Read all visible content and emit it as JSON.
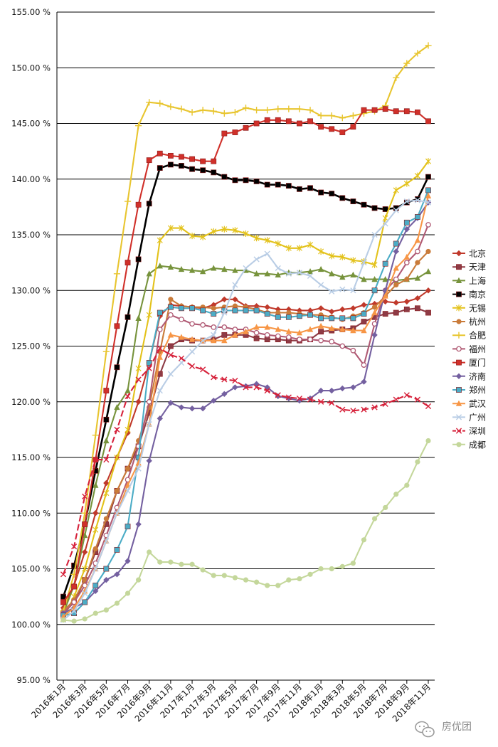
{
  "chart_data": {
    "type": "line",
    "ylim": [
      95,
      155
    ],
    "yticks": [
      "95.00 %",
      "100.00 %",
      "105.00 %",
      "110.00 %",
      "115.00 %",
      "120.00 %",
      "125.00 %",
      "130.00 %",
      "135.00 %",
      "140.00 %",
      "145.00 %",
      "150.00 %",
      "155.00 %"
    ],
    "ytick_values": [
      95,
      100,
      105,
      110,
      115,
      120,
      125,
      130,
      135,
      140,
      145,
      150,
      155
    ],
    "x": [
      "2016年1月",
      "2016年2月",
      "2016年3月",
      "2016年4月",
      "2016年5月",
      "2016年6月",
      "2016年7月",
      "2016年8月",
      "2016年9月",
      "2016年10月",
      "2016年11月",
      "2016年12月",
      "2017年1月",
      "2017年2月",
      "2017年3月",
      "2017年4月",
      "2017年5月",
      "2017年6月",
      "2017年7月",
      "2017年8月",
      "2017年9月",
      "2017年10月",
      "2017年11月",
      "2017年12月",
      "2018年1月",
      "2018年2月",
      "2018年3月",
      "2018年4月",
      "2018年5月",
      "2018年6月",
      "2018年7月",
      "2018年8月",
      "2018年9月",
      "2018年10月",
      "2018年11月"
    ],
    "xtick_labels": [
      "2016年1月",
      "2016年3月",
      "2016年5月",
      "2016年7月",
      "2016年9月",
      "2016年11月",
      "2017年1月",
      "2017年3月",
      "2017年5月",
      "2017年7月",
      "2017年9月",
      "2017年11月",
      "2018年1月",
      "2018年3月",
      "2018年5月",
      "2018年7月",
      "2018年9月",
      "2018年11月"
    ],
    "grid": true,
    "legend_position": "right",
    "watermark": "房优团",
    "series": [
      {
        "name": "北京",
        "color": "#C0392B",
        "marker": "diamond",
        "values": [
          101.5,
          103.5,
          106.5,
          110.0,
          112.7,
          115.0,
          117.2,
          120.0,
          123.5,
          127.7,
          128.7,
          128.6,
          128.5,
          128.4,
          128.7,
          129.2,
          129.2,
          128.6,
          128.6,
          128.5,
          128.3,
          128.3,
          128.2,
          128.2,
          128.4,
          128.1,
          128.3,
          128.4,
          128.7,
          128.8,
          129.0,
          128.9,
          129.0,
          129.3,
          130.0
        ]
      },
      {
        "name": "天津",
        "color": "#8E3B46",
        "marker": "square",
        "values": [
          101.0,
          102.0,
          104.0,
          106.5,
          109.0,
          112.0,
          114.0,
          116.0,
          119.0,
          122.5,
          125.0,
          125.6,
          125.5,
          125.5,
          125.6,
          126.0,
          126.0,
          126.0,
          125.7,
          125.6,
          125.6,
          125.5,
          125.5,
          125.6,
          126.3,
          126.4,
          126.5,
          126.6,
          127.2,
          127.6,
          127.9,
          128.0,
          128.3,
          128.4,
          128.0
        ]
      },
      {
        "name": "上海",
        "color": "#77933C",
        "marker": "triangle",
        "values": [
          101.0,
          103.5,
          108.0,
          112.5,
          116.5,
          119.5,
          121.0,
          127.5,
          131.5,
          132.2,
          132.1,
          131.9,
          131.8,
          131.7,
          132.0,
          131.9,
          131.8,
          131.8,
          131.5,
          131.5,
          131.4,
          131.6,
          131.6,
          131.7,
          131.9,
          131.5,
          131.2,
          131.4,
          131.0,
          131.0,
          131.0,
          130.9,
          131.0,
          131.1,
          131.7
        ]
      },
      {
        "name": "南京",
        "color": "#000000",
        "marker": "square",
        "values": [
          102.5,
          105.3,
          109.0,
          113.8,
          118.4,
          123.1,
          127.6,
          132.8,
          137.8,
          141.0,
          141.3,
          141.2,
          140.9,
          140.8,
          140.6,
          140.2,
          139.9,
          139.9,
          139.8,
          139.5,
          139.5,
          139.4,
          139.1,
          139.2,
          138.8,
          138.7,
          138.3,
          138.0,
          137.7,
          137.4,
          137.3,
          137.4,
          137.9,
          138.2,
          140.2
        ]
      },
      {
        "name": "无锡",
        "color": "#E3C21B",
        "marker": "star",
        "values": [
          100.5,
          102.5,
          105.0,
          108.5,
          111.8,
          115.0,
          117.5,
          123.0,
          127.8,
          134.5,
          135.6,
          135.6,
          134.9,
          134.8,
          135.3,
          135.5,
          135.4,
          135.1,
          134.7,
          134.5,
          134.2,
          133.8,
          133.8,
          134.1,
          133.5,
          133.1,
          133.0,
          132.7,
          132.6,
          132.3,
          136.5,
          139.0,
          139.6,
          140.3,
          141.6
        ]
      },
      {
        "name": "杭州",
        "color": "#C97B3A",
        "marker": "circle",
        "values": [
          101.2,
          102.2,
          104.0,
          106.8,
          109.5,
          112.0,
          114.0,
          116.5,
          119.5,
          124.5,
          129.2,
          128.6,
          128.5,
          128.5,
          128.4,
          128.5,
          128.6,
          128.5,
          128.3,
          128.0,
          128.0,
          128.0,
          127.9,
          127.8,
          127.8,
          127.6,
          127.4,
          127.7,
          128.0,
          128.5,
          129.5,
          130.5,
          131.0,
          132.5,
          133.5
        ]
      },
      {
        "name": "合肥",
        "color": "#E8C52F",
        "marker": "plus",
        "values": [
          101.2,
          104.5,
          110.0,
          117.0,
          124.5,
          131.5,
          138.0,
          144.8,
          146.9,
          146.8,
          146.5,
          146.3,
          146.0,
          146.2,
          146.1,
          145.9,
          146.0,
          146.4,
          146.2,
          146.2,
          146.3,
          146.3,
          146.3,
          146.2,
          145.7,
          145.7,
          145.5,
          145.7,
          145.9,
          146.1,
          146.6,
          149.1,
          150.4,
          151.3,
          152.0
        ]
      },
      {
        "name": "福州",
        "color": "#B05A74",
        "marker": "circle-open",
        "values": [
          101.0,
          102.0,
          103.5,
          105.5,
          108.0,
          110.5,
          113.0,
          116.0,
          120.0,
          126.5,
          127.8,
          127.4,
          127.0,
          126.9,
          126.7,
          126.7,
          126.5,
          126.5,
          126.2,
          126.0,
          125.9,
          125.8,
          125.6,
          125.6,
          125.5,
          125.4,
          125.0,
          124.6,
          123.3,
          127.0,
          130.0,
          131.0,
          132.5,
          133.5,
          135.9
        ]
      },
      {
        "name": "厦门",
        "color": "#D0302A",
        "marker": "square",
        "values": [
          102.0,
          103.4,
          109.0,
          114.8,
          121.0,
          126.8,
          132.5,
          137.7,
          141.7,
          142.3,
          142.1,
          142.0,
          141.8,
          141.6,
          141.6,
          144.1,
          144.2,
          144.6,
          145.0,
          145.3,
          145.3,
          145.2,
          145.0,
          145.2,
          144.7,
          144.5,
          144.2,
          144.7,
          146.2,
          146.2,
          146.3,
          146.1,
          146.1,
          146.0,
          145.2
        ]
      },
      {
        "name": "济南",
        "color": "#7460A0",
        "marker": "diamond",
        "values": [
          101.0,
          101.5,
          102.0,
          103.0,
          104.0,
          104.5,
          105.7,
          109.0,
          114.7,
          118.5,
          119.9,
          119.5,
          119.4,
          119.4,
          120.1,
          120.7,
          121.3,
          121.4,
          121.6,
          121.3,
          120.5,
          120.3,
          120.1,
          120.3,
          121.0,
          121.0,
          121.2,
          121.3,
          121.8,
          126.0,
          130.0,
          133.5,
          135.5,
          136.5,
          137.9
        ]
      },
      {
        "name": "郑州",
        "color": "#4BACC6",
        "marker": "square",
        "values": [
          100.8,
          101.0,
          102.0,
          103.5,
          105.0,
          106.7,
          108.8,
          115.0,
          123.5,
          128.0,
          128.5,
          128.4,
          128.4,
          128.2,
          127.9,
          128.2,
          128.2,
          128.2,
          128.2,
          127.9,
          127.6,
          127.6,
          127.7,
          127.8,
          127.5,
          127.5,
          127.5,
          127.5,
          127.9,
          130.0,
          132.4,
          134.2,
          136.1,
          136.6,
          139.0
        ]
      },
      {
        "name": "武汉",
        "color": "#F79646",
        "marker": "triangle",
        "values": [
          100.7,
          101.5,
          103.0,
          105.0,
          107.5,
          110.0,
          112.5,
          114.5,
          118.0,
          124.0,
          126.0,
          125.8,
          125.6,
          125.5,
          125.5,
          125.5,
          126.0,
          126.3,
          126.7,
          126.7,
          126.5,
          126.3,
          126.2,
          126.5,
          126.8,
          126.6,
          126.5,
          126.4,
          126.4,
          128.0,
          129.5,
          132.0,
          133.0,
          134.5,
          138.5
        ]
      },
      {
        "name": "广州",
        "color": "#B9CDE5",
        "marker": "x",
        "values": [
          100.4,
          101.2,
          102.8,
          105.0,
          107.5,
          110.0,
          112.0,
          114.0,
          118.0,
          121.0,
          122.5,
          123.5,
          124.5,
          125.5,
          126.0,
          128.0,
          130.5,
          132.0,
          132.8,
          133.3,
          132.0,
          131.5,
          131.6,
          131.3,
          130.5,
          129.9,
          130.1,
          130.0,
          132.5,
          135.0,
          136.0,
          137.2,
          138.0,
          138.1,
          137.9
        ]
      },
      {
        "name": "深圳",
        "color": "#D6213A",
        "marker": "x",
        "dash": true,
        "values": [
          104.5,
          107.0,
          111.5,
          114.8,
          114.8,
          117.5,
          120.5,
          122.0,
          123.0,
          124.8,
          124.2,
          123.9,
          123.2,
          122.9,
          122.2,
          122.0,
          121.9,
          121.3,
          121.3,
          121.0,
          120.6,
          120.4,
          120.3,
          120.2,
          120.0,
          119.9,
          119.3,
          119.2,
          119.3,
          119.5,
          119.8,
          120.2,
          120.6,
          120.2,
          119.6
        ]
      },
      {
        "name": "成都",
        "color": "#C4D79B",
        "marker": "circle",
        "values": [
          100.4,
          100.3,
          100.5,
          101.0,
          101.3,
          101.9,
          102.8,
          104.0,
          106.5,
          105.6,
          105.6,
          105.4,
          105.4,
          104.9,
          104.4,
          104.4,
          104.2,
          104.0,
          103.8,
          103.5,
          103.5,
          104.0,
          104.1,
          104.5,
          105.0,
          105.0,
          105.2,
          105.5,
          107.6,
          109.5,
          110.5,
          111.7,
          112.5,
          114.6,
          116.5
        ]
      }
    ]
  }
}
